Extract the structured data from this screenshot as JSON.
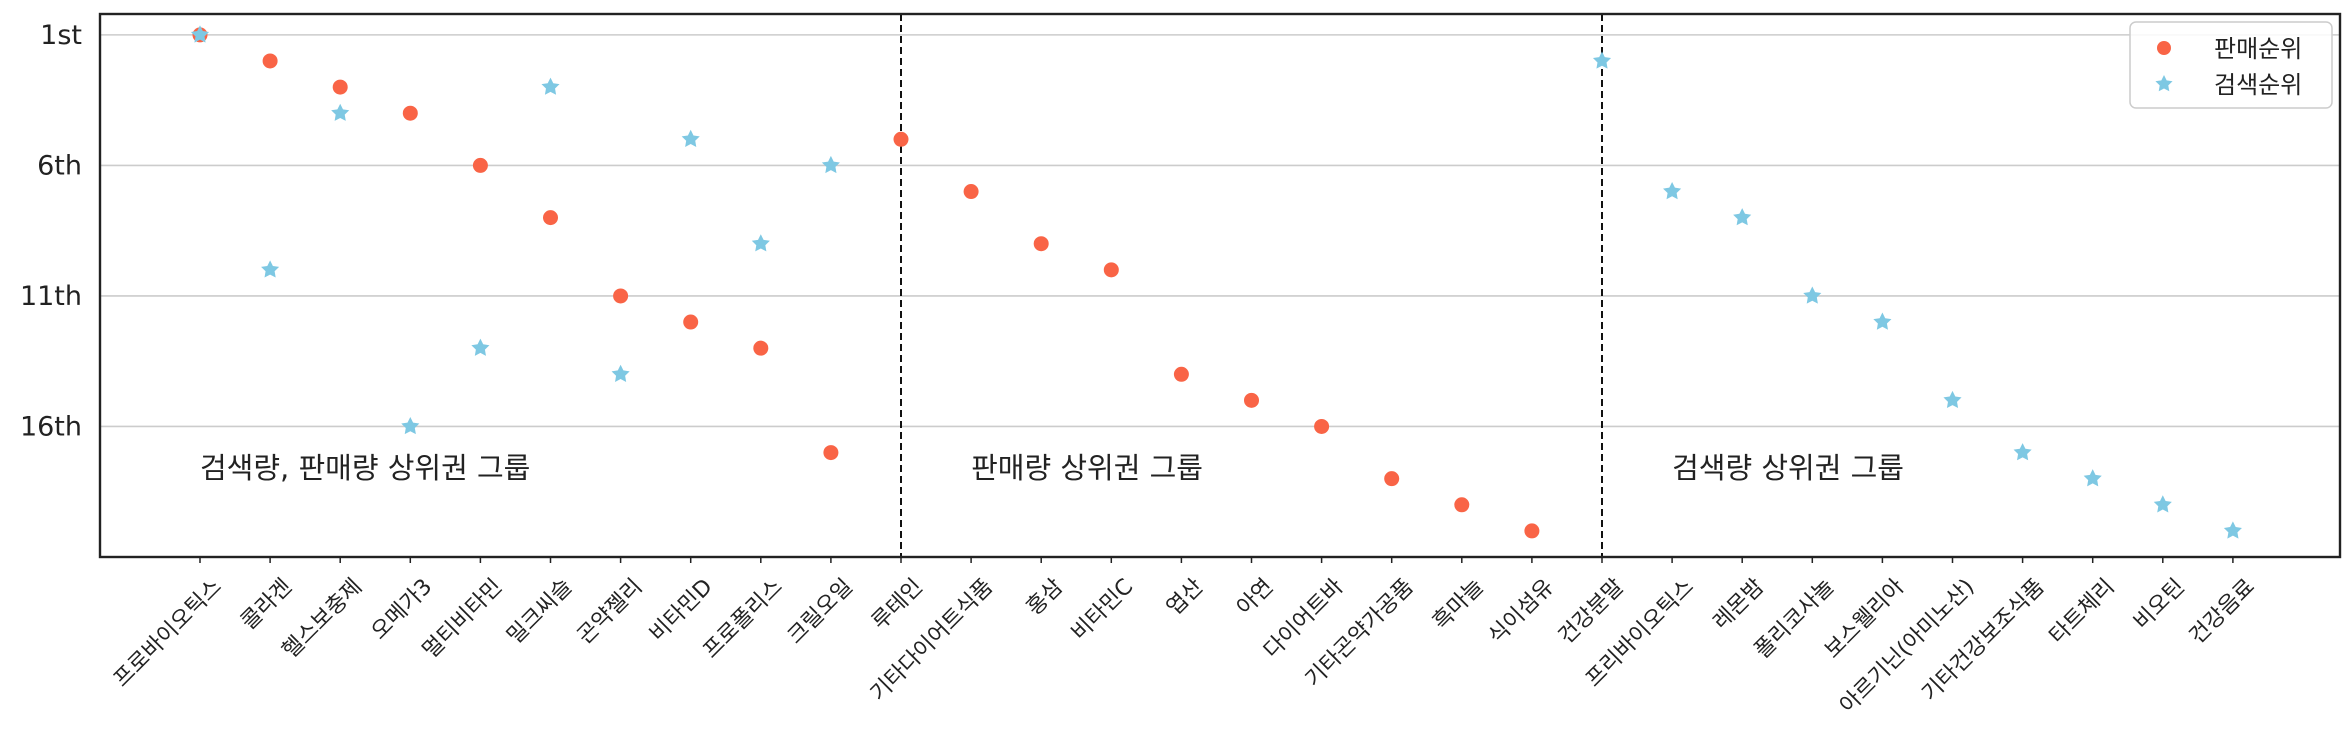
{
  "chart_data": {
    "type": "scatter",
    "categories": [
      "프로바이오틱스",
      "콜라겐",
      "헬스보충제",
      "오메가3",
      "멀티비타민",
      "밀크씨슬",
      "곤약젤리",
      "비타민D",
      "프로폴리스",
      "크릴오일",
      "루테인",
      "기타다이어트식품",
      "홍삼",
      "비타민C",
      "엽산",
      "아연",
      "다이어트바",
      "기타곤약가공품",
      "흑마늘",
      "식이섬유",
      "건강분말",
      "프리바이오틱스",
      "레몬밤",
      "폴리코사놀",
      "보스웰리아",
      "아르기닌(아미노산)",
      "기타건강보조식품",
      "타트체리",
      "비오틴",
      "건강음료"
    ],
    "series": [
      {
        "name": "판매순위",
        "marker": "circle",
        "color": "#f96446",
        "values": [
          1,
          2,
          3,
          4,
          6,
          8,
          11,
          12,
          13,
          17,
          5,
          7,
          9,
          10,
          14,
          15,
          16,
          18,
          19,
          20,
          null,
          null,
          null,
          null,
          null,
          null,
          null,
          null,
          null,
          null
        ]
      },
      {
        "name": "검색순위",
        "marker": "star",
        "color": "#7ec8e3",
        "values": [
          1,
          10,
          4,
          16,
          13,
          3,
          14,
          5,
          9,
          6,
          null,
          null,
          null,
          null,
          null,
          null,
          null,
          null,
          null,
          null,
          2,
          7,
          8,
          11,
          12,
          15,
          17,
          18,
          19,
          20
        ]
      }
    ],
    "y_ticks": [
      {
        "value": 1,
        "label": "1st"
      },
      {
        "value": 6,
        "label": "6th"
      },
      {
        "value": 11,
        "label": "11th"
      },
      {
        "value": 16,
        "label": "16th"
      }
    ],
    "ylim": [
      21,
      0.2
    ],
    "y_inverted": true,
    "grid_y": true,
    "legend": "top-right",
    "dividers_after_index": [
      10,
      20
    ],
    "annotations": [
      {
        "text": "검색량, 판매량 상위권 그룹",
        "x_index": 0,
        "y": 17.6
      },
      {
        "text": "판매량 상위권 그룹",
        "x_index": 11,
        "y": 17.6
      },
      {
        "text": "검색량 상위권 그룹",
        "x_index": 21,
        "y": 17.6
      }
    ]
  }
}
